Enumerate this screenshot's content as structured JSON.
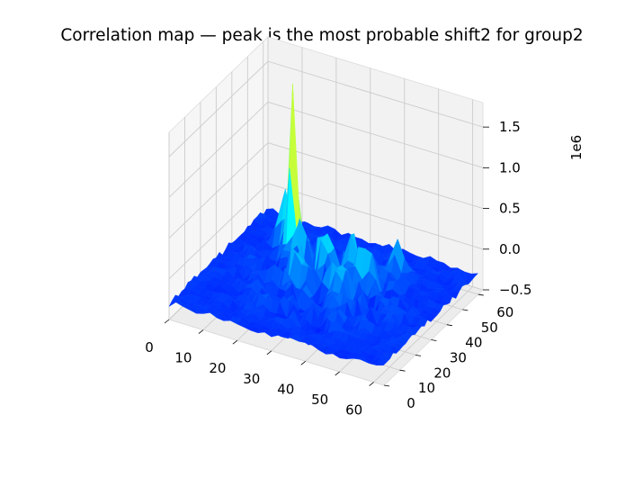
{
  "chart_data": {
    "type": "surface3d",
    "title": "Correlation map — peak is the most probable shift2 for group2",
    "xlabel": "",
    "ylabel": "",
    "zlabel": "",
    "x_ticks": [
      "0",
      "10",
      "20",
      "30",
      "40",
      "50",
      "60"
    ],
    "y_ticks": [
      "0",
      "10",
      "20",
      "30",
      "40",
      "50",
      "60"
    ],
    "z_ticks": [
      "−0.5",
      "0.0",
      "0.5",
      "1.0",
      "1.5"
    ],
    "z_offset_label": "1e6",
    "xlim": [
      0,
      63
    ],
    "ylim": [
      0,
      63
    ],
    "zlim": [
      -0.5,
      1.8
    ],
    "z_scale": 1000000,
    "colormap": "jet",
    "grid": true,
    "peak": {
      "x": 16,
      "y": 44,
      "z": 1.75
    },
    "secondary_peaks": [
      {
        "x": 20,
        "y": 40,
        "z": 0.6
      },
      {
        "x": 12,
        "y": 48,
        "z": 0.55
      },
      {
        "x": 28,
        "y": 38,
        "z": 0.45
      },
      {
        "x": 34,
        "y": 42,
        "z": 0.5
      },
      {
        "x": 40,
        "y": 38,
        "z": 0.45
      },
      {
        "x": 24,
        "y": 30,
        "z": 0.35
      },
      {
        "x": 36,
        "y": 30,
        "z": 0.3
      },
      {
        "x": 44,
        "y": 50,
        "z": 0.3
      }
    ],
    "baseline": -0.3
  }
}
